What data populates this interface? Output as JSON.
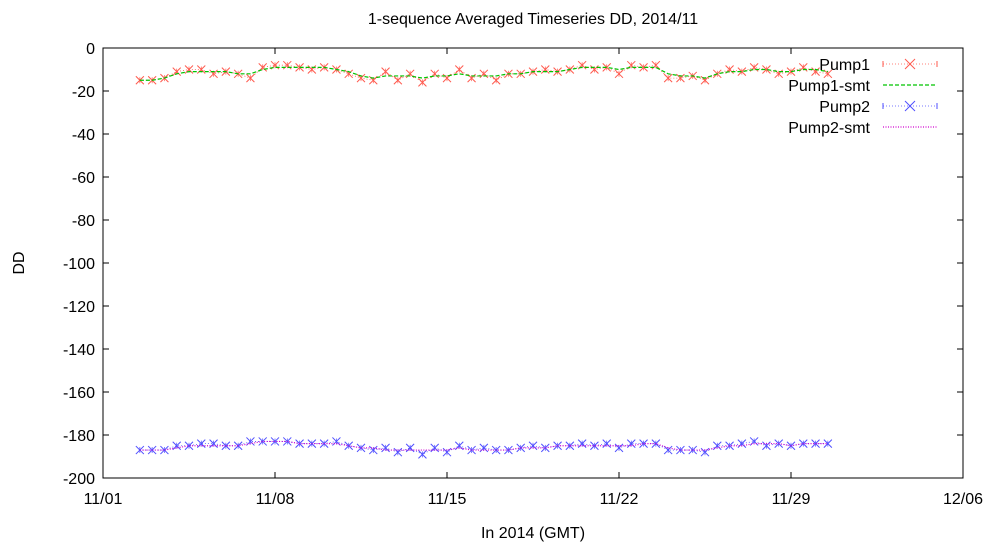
{
  "chart_data": {
    "type": "line",
    "title": "1-sequence Averaged Timeseries DD, 2014/11",
    "xlabel": "In 2014 (GMT)",
    "ylabel": "DD",
    "xlim": [
      "2014-11-01",
      "2014-12-06"
    ],
    "ylim": [
      -200,
      0
    ],
    "x_ticks": [
      {
        "date": "2014-11-01",
        "label": "11/01"
      },
      {
        "date": "2014-11-08",
        "label": "11/08"
      },
      {
        "date": "2014-11-15",
        "label": "11/15"
      },
      {
        "date": "2014-11-22",
        "label": "11/22"
      },
      {
        "date": "2014-11-29",
        "label": "11/29"
      },
      {
        "date": "2014-12-06",
        "label": "12/06"
      }
    ],
    "y_ticks": [
      0,
      -20,
      -40,
      -60,
      -80,
      -100,
      -120,
      -140,
      -160,
      -180,
      -200
    ],
    "grid": false,
    "legend": "top-right",
    "x": [
      "2014-11-02 12:00",
      "2014-11-03",
      "2014-11-03 12:00",
      "2014-11-04",
      "2014-11-04 12:00",
      "2014-11-05",
      "2014-11-05 12:00",
      "2014-11-06",
      "2014-11-06 12:00",
      "2014-11-07",
      "2014-11-07 12:00",
      "2014-11-08",
      "2014-11-08 12:00",
      "2014-11-09",
      "2014-11-09 12:00",
      "2014-11-10",
      "2014-11-10 12:00",
      "2014-11-11",
      "2014-11-11 12:00",
      "2014-11-12",
      "2014-11-12 12:00",
      "2014-11-13",
      "2014-11-13 12:00",
      "2014-11-14",
      "2014-11-14 12:00",
      "2014-11-15",
      "2014-11-15 12:00",
      "2014-11-16",
      "2014-11-16 12:00",
      "2014-11-17",
      "2014-11-17 12:00",
      "2014-11-18",
      "2014-11-18 12:00",
      "2014-11-19",
      "2014-11-19 12:00",
      "2014-11-20",
      "2014-11-20 12:00",
      "2014-11-21",
      "2014-11-21 12:00",
      "2014-11-22",
      "2014-11-22 12:00",
      "2014-11-23",
      "2014-11-23 12:00",
      "2014-11-24",
      "2014-11-24 12:00",
      "2014-11-25",
      "2014-11-25 12:00",
      "2014-11-26",
      "2014-11-26 12:00",
      "2014-11-27",
      "2014-11-27 12:00",
      "2014-11-28",
      "2014-11-28 12:00",
      "2014-11-29",
      "2014-11-29 12:00",
      "2014-11-30",
      "2014-11-30 12:00"
    ],
    "series": [
      {
        "name": "Pump1",
        "style": "points",
        "color": "#ff5a4e",
        "values": [
          -15,
          -15,
          -14,
          -11,
          -10,
          -10,
          -12,
          -11,
          -12,
          -14,
          -9,
          -8,
          -8,
          -9,
          -10,
          -9,
          -10,
          -12,
          -14,
          -15,
          -11,
          -15,
          -12,
          -16,
          -12,
          -14,
          -10,
          -14,
          -12,
          -15,
          -12,
          -12,
          -11,
          -10,
          -11,
          -10,
          -8,
          -10,
          -9,
          -12,
          -8,
          -9,
          -8,
          -14,
          -14,
          -13,
          -15,
          -12,
          -10,
          -11,
          -9,
          -10,
          -12,
          -11,
          -9,
          -11,
          -12
        ]
      },
      {
        "name": "Pump1-smt",
        "style": "dashed",
        "color": "#00c400",
        "values": [
          -15,
          -15,
          -14,
          -12,
          -11,
          -11,
          -11,
          -11,
          -12,
          -12,
          -10,
          -9,
          -9,
          -9,
          -9,
          -9,
          -10,
          -11,
          -13,
          -14,
          -13,
          -13,
          -13,
          -14,
          -13,
          -13,
          -12,
          -13,
          -13,
          -13,
          -12,
          -12,
          -11,
          -11,
          -11,
          -10,
          -9,
          -9,
          -9,
          -10,
          -9,
          -9,
          -9,
          -12,
          -13,
          -13,
          -14,
          -12,
          -11,
          -11,
          -10,
          -10,
          -11,
          -11,
          -10,
          -10,
          -11
        ]
      },
      {
        "name": "Pump2",
        "style": "points",
        "color": "#4f4fff",
        "values": [
          -187,
          -187,
          -187,
          -185,
          -185,
          -184,
          -184,
          -185,
          -185,
          -183,
          -183,
          -183,
          -183,
          -184,
          -184,
          -184,
          -183,
          -185,
          -186,
          -187,
          -186,
          -188,
          -186,
          -189,
          -186,
          -188,
          -185,
          -187,
          -186,
          -187,
          -187,
          -186,
          -185,
          -186,
          -185,
          -185,
          -184,
          -185,
          -184,
          -186,
          -184,
          -184,
          -184,
          -187,
          -187,
          -187,
          -188,
          -185,
          -185,
          -184,
          -183,
          -185,
          -184,
          -185,
          -184,
          -184,
          -184
        ]
      },
      {
        "name": "Pump2-smt",
        "style": "dotted",
        "color": "#d000d0",
        "values": [
          -187,
          -187,
          -187,
          -186,
          -185,
          -185,
          -185,
          -185,
          -185,
          -184,
          -183,
          -183,
          -183,
          -184,
          -184,
          -184,
          -184,
          -185,
          -186,
          -186,
          -187,
          -187,
          -187,
          -187,
          -187,
          -187,
          -186,
          -187,
          -187,
          -187,
          -187,
          -186,
          -186,
          -186,
          -185,
          -185,
          -185,
          -185,
          -185,
          -185,
          -185,
          -184,
          -184,
          -186,
          -187,
          -187,
          -187,
          -186,
          -185,
          -185,
          -184,
          -184,
          -184,
          -185,
          -184,
          -184,
          -184
        ]
      }
    ]
  }
}
